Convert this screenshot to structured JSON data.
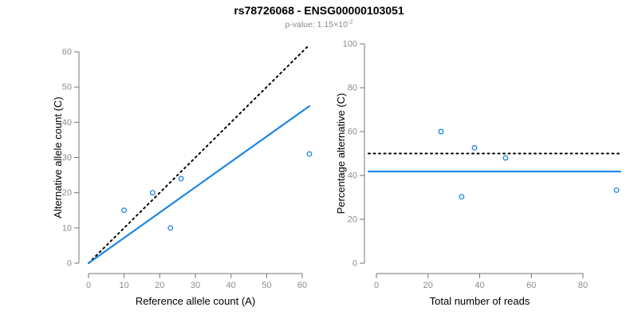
{
  "header": {
    "title": "rs78726068 - ENSG00000103051",
    "pvalue_label": "p-value: 1.15×10",
    "pvalue_exponent": "-2"
  },
  "colors": {
    "accent_blue": "#1E87E5",
    "line_black": "#000000",
    "axis_line": "#757575",
    "tick_label": "#8c8c8c",
    "axis_text": "#000000",
    "subtitle_gray": "#8a8a8a"
  },
  "chart_data": [
    {
      "type": "scatter",
      "name": "allele-count-scatter",
      "xlabel": "Reference allele count (A)",
      "ylabel": "Alternative allele count (C)",
      "xlim": [
        0,
        62
      ],
      "ylim": [
        0,
        62
      ],
      "xticks": [
        0,
        10,
        20,
        30,
        40,
        50,
        60
      ],
      "yticks": [
        0,
        10,
        20,
        30,
        40,
        50,
        60
      ],
      "grid": false,
      "legend": null,
      "point_color": "#1E87E5",
      "points": [
        [
          10,
          15
        ],
        [
          18,
          20
        ],
        [
          23,
          10
        ],
        [
          26,
          24
        ],
        [
          62,
          31
        ]
      ],
      "segments": [
        {
          "name": "identity-line",
          "style": "dotted",
          "color": "#000000",
          "x1": 0,
          "y1": 0,
          "x2": 62,
          "y2": 62
        },
        {
          "name": "regression-line",
          "style": "solid",
          "color": "#1E87E5",
          "x1": 0,
          "y1": 0,
          "x2": 62,
          "y2": 44.6
        }
      ]
    },
    {
      "type": "scatter",
      "name": "percentage-alternative-scatter",
      "xlabel": "Total number of reads",
      "ylabel": "Percentage alternative (C)",
      "xlim": [
        0,
        95
      ],
      "ylim": [
        0,
        100
      ],
      "xticks": [
        0,
        20,
        40,
        60,
        80
      ],
      "yticks": [
        0,
        20,
        40,
        60,
        80,
        100
      ],
      "grid": false,
      "legend": null,
      "point_color": "#1E87E5",
      "points": [
        [
          25,
          60
        ],
        [
          33,
          30.3
        ],
        [
          38,
          52.6
        ],
        [
          50,
          48
        ],
        [
          93,
          33.3
        ]
      ],
      "hlines": [
        {
          "name": "expected-50pct-line",
          "style": "dotted",
          "color": "#000000",
          "y": 50
        },
        {
          "name": "mean-percentage-line",
          "style": "solid",
          "color": "#1E87E5",
          "y": 41.8
        }
      ]
    }
  ]
}
